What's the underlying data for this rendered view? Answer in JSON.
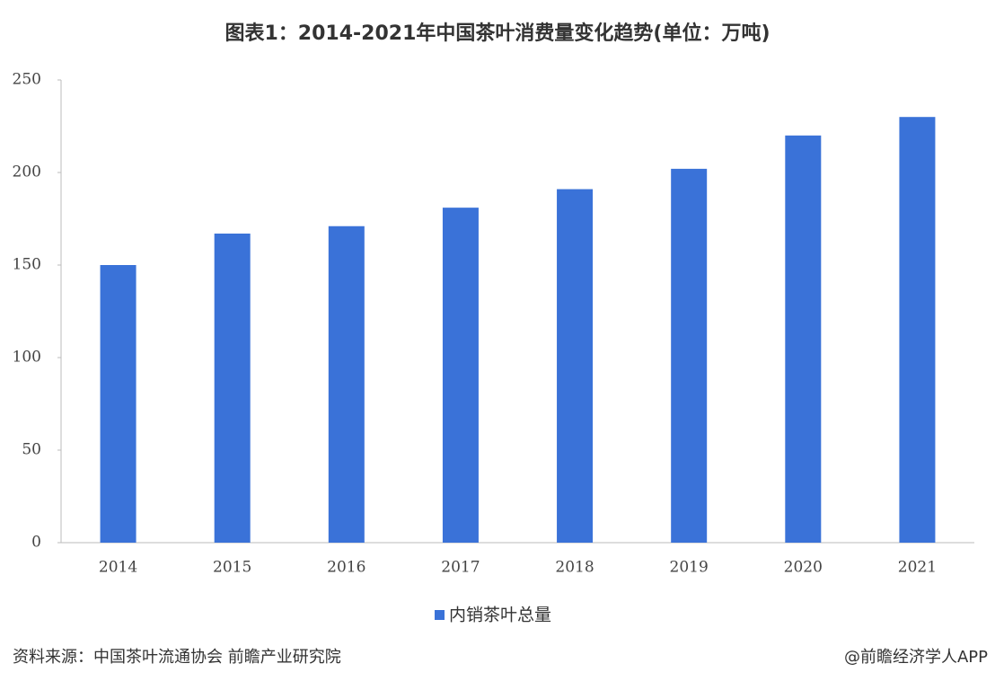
{
  "chart_data": {
    "type": "bar",
    "title": "图表1：2014-2021年中国茶叶消费量变化趋势(单位：万吨)",
    "categories": [
      "2014",
      "2015",
      "2016",
      "2017",
      "2018",
      "2019",
      "2020",
      "2021"
    ],
    "series": [
      {
        "name": "内销茶叶总量",
        "color": "#3a72d8",
        "values": [
          150,
          167,
          171,
          181,
          191,
          202,
          220,
          230
        ]
      }
    ],
    "ylim": [
      0,
      250
    ],
    "yticks": [
      0,
      50,
      100,
      150,
      200,
      250
    ],
    "grid": false,
    "legend": "bottom",
    "source": "资料来源：中国茶叶流通协会 前瞻产业研究院",
    "credit": "@前瞻经济学人APP"
  }
}
